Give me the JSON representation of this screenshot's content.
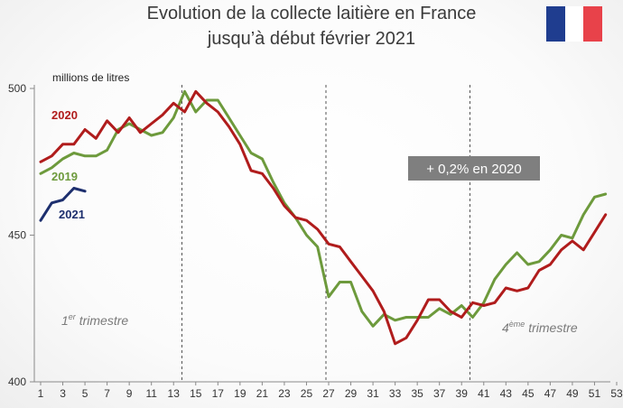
{
  "title_line1": "Evolution de la collecte laitière en France",
  "title_line2": "jusqu’à début février 2021",
  "chart_data": {
    "type": "line",
    "title": "Evolution de la collecte laitière en France jusqu’à début février 2021",
    "ylabel": "millions de litres",
    "xlabel": "",
    "xlim": [
      1,
      53
    ],
    "ylim": [
      400,
      500
    ],
    "yticks": [
      400,
      450,
      500
    ],
    "xticks": [
      1,
      3,
      5,
      7,
      9,
      11,
      13,
      15,
      17,
      19,
      21,
      23,
      25,
      27,
      29,
      31,
      33,
      35,
      37,
      39,
      41,
      43,
      45,
      47,
      49,
      51,
      53
    ],
    "grid": false,
    "legend": "inline-left",
    "colors": {
      "2020": "#b01c1c",
      "2019": "#6d9a3c",
      "2021": "#1d2f6e"
    },
    "vlines": [
      14,
      27,
      40
    ],
    "annotation_box": "+ 0,2% en 2020",
    "annotation_colors": {
      "box": "#7f7f7f",
      "text": "#ffffff"
    },
    "quarter_labels": [
      {
        "base": "1",
        "sup": "er",
        "rest": " trimestre"
      },
      {
        "base": "4",
        "sup": "ème",
        "rest": " trimestre"
      }
    ],
    "series": [
      {
        "name": "2020",
        "x": [
          1,
          2,
          3,
          4,
          5,
          6,
          7,
          8,
          9,
          10,
          11,
          12,
          13,
          14,
          15,
          16,
          17,
          18,
          19,
          20,
          21,
          22,
          23,
          24,
          25,
          26,
          27,
          28,
          29,
          30,
          31,
          32,
          33,
          34,
          35,
          36,
          37,
          38,
          39,
          40,
          41,
          42,
          43,
          44,
          45,
          46,
          47,
          48,
          49,
          50,
          51,
          52
        ],
        "values": [
          475,
          477,
          481,
          481,
          486,
          483,
          489,
          485,
          490,
          485,
          488,
          491,
          495,
          492,
          499,
          495,
          492,
          487,
          481,
          472,
          471,
          466,
          460,
          456,
          455,
          452,
          447,
          446,
          441,
          436,
          431,
          424,
          413,
          415,
          421,
          428,
          428,
          424,
          422,
          427,
          426,
          427,
          432,
          431,
          432,
          438,
          440,
          445,
          448,
          445,
          451,
          457
        ]
      },
      {
        "name": "2019",
        "x": [
          1,
          2,
          3,
          4,
          5,
          6,
          7,
          8,
          9,
          10,
          11,
          12,
          13,
          14,
          15,
          16,
          17,
          18,
          19,
          20,
          21,
          22,
          23,
          24,
          25,
          26,
          27,
          28,
          29,
          30,
          31,
          32,
          33,
          34,
          35,
          36,
          37,
          38,
          39,
          40,
          41,
          42,
          43,
          44,
          45,
          46,
          47,
          48,
          49,
          50,
          51,
          52
        ],
        "values": [
          471,
          473,
          476,
          478,
          477,
          477,
          479,
          486,
          488,
          486,
          484,
          485,
          490,
          499,
          492,
          496,
          496,
          490,
          484,
          478,
          476,
          468,
          461,
          456,
          450,
          446,
          429,
          434,
          434,
          424,
          419,
          423,
          421,
          422,
          422,
          422,
          425,
          423,
          426,
          422,
          427,
          435,
          440,
          444,
          440,
          441,
          445,
          450,
          449,
          457,
          463,
          464
        ]
      },
      {
        "name": "2021",
        "x": [
          1,
          2,
          3,
          4,
          5
        ],
        "values": [
          455,
          461,
          462,
          466,
          465
        ]
      }
    ]
  }
}
